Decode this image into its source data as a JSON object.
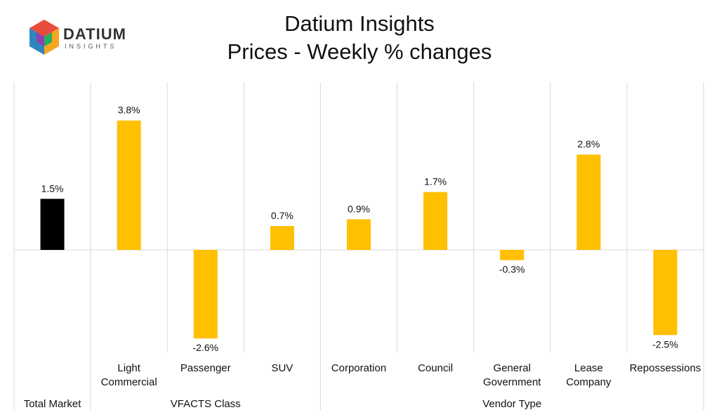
{
  "logo": {
    "name": "DATIUM",
    "sub": "INSIGHTS"
  },
  "title_lines": [
    "Datium Insights",
    "Prices - Weekly % changes"
  ],
  "chart_data": {
    "type": "bar",
    "categories": [
      [
        "Total Market"
      ],
      [
        "Light",
        "Commercial"
      ],
      [
        "Passenger"
      ],
      [
        "SUV"
      ],
      [
        "Corporation"
      ],
      [
        "Council"
      ],
      [
        "General",
        "Government"
      ],
      [
        "Lease",
        "Company"
      ],
      [
        "Repossessions"
      ]
    ],
    "values": [
      1.5,
      3.8,
      -2.6,
      0.7,
      0.9,
      1.7,
      -0.3,
      2.8,
      -2.5
    ],
    "value_labels": [
      "1.5%",
      "3.8%",
      "-2.6%",
      "0.7%",
      "0.9%",
      "1.7%",
      "-0.3%",
      "2.8%",
      "-2.5%"
    ],
    "group_labels": [
      {
        "text": "VFACTS Class",
        "categories": [
          1,
          3
        ]
      },
      {
        "text": "Vendor Type",
        "categories": [
          4,
          8
        ]
      }
    ],
    "ylim": [
      -3.0,
      5.0
    ],
    "colors": {
      "highlight": "#000000",
      "default": "#FFC000",
      "grid": "#D9D9D9",
      "axis": "#D9D9D9"
    },
    "highlight_index": 0
  }
}
